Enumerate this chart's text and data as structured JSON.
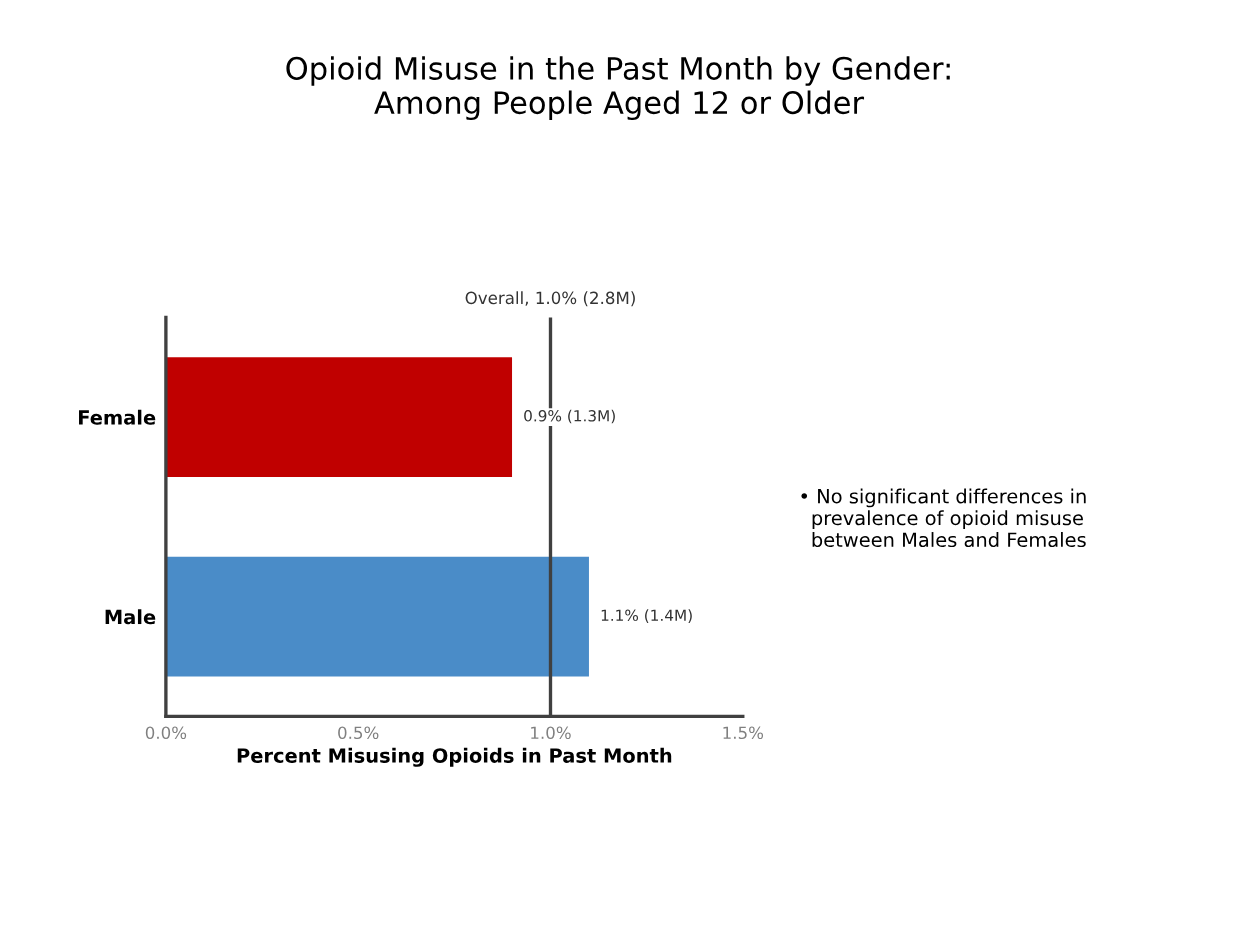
{
  "chart_data": {
    "type": "bar",
    "orientation": "horizontal",
    "title": "Opioid Misuse in the Past Month by Gender:\nAmong People Aged 12 or Older",
    "xlabel": "Percent Misusing Opioids in Past Month",
    "categories": [
      "Female",
      "Male"
    ],
    "values": [
      0.9,
      1.1
    ],
    "colors": [
      "#c00000",
      "#4a8cc8"
    ],
    "value_labels": [
      "0.9% (1.3M)",
      "1.1% (1.4M)"
    ],
    "xlim": [
      0,
      1.5
    ],
    "xticks": [
      {
        "value": 0,
        "label": "0.0%"
      },
      {
        "value": 0.5,
        "label": "0.5%"
      },
      {
        "value": 1.0,
        "label": "1.0%"
      },
      {
        "value": 1.5,
        "label": "1.5%"
      }
    ],
    "ref_lines": [
      {
        "axis": "x",
        "value": 1.0,
        "label": "Overall, 1.0% (2.8M)",
        "color": "#404040"
      }
    ],
    "grid": false,
    "annotations": [
      "• No significant differences in\n  prevalence of opioid misuse\n  between Males and Females"
    ]
  }
}
